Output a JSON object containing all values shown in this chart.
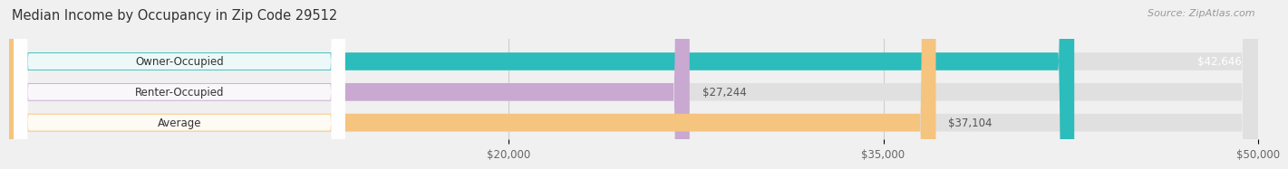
{
  "title": "Median Income by Occupancy in Zip Code 29512",
  "source": "Source: ZipAtlas.com",
  "categories": [
    "Owner-Occupied",
    "Renter-Occupied",
    "Average"
  ],
  "values": [
    42646,
    27244,
    37104
  ],
  "bar_colors": [
    "#2cbcbb",
    "#c9a8d2",
    "#f5c47f"
  ],
  "value_labels": [
    "$42,646",
    "$27,244",
    "$37,104"
  ],
  "xlim": [
    0,
    50000
  ],
  "xticks": [
    20000,
    35000,
    50000
  ],
  "xtick_labels": [
    "$20,000",
    "$35,000",
    "$50,000"
  ],
  "title_fontsize": 10.5,
  "source_fontsize": 8,
  "label_fontsize": 8.5,
  "value_fontsize": 8.5,
  "tick_fontsize": 8.5,
  "background_color": "#f0f0f0",
  "bar_bg_color": "#e0e0e0",
  "grid_color": "#cccccc",
  "value_label_colors": [
    "#ffffff",
    "#555555",
    "#555555"
  ],
  "value_label_inside": [
    true,
    false,
    false
  ],
  "pill_bg_color": "#ffffff"
}
